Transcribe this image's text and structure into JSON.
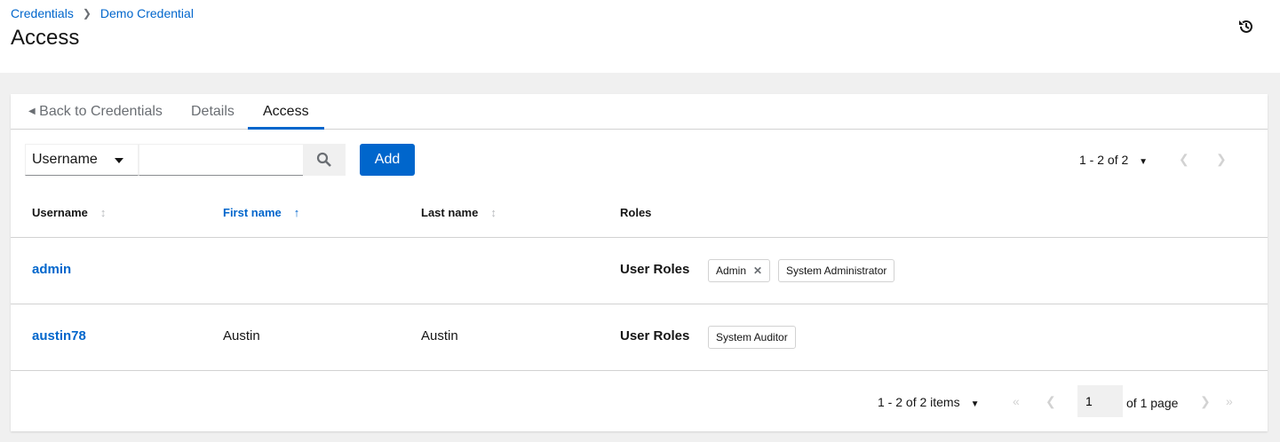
{
  "breadcrumb": {
    "items": [
      "Credentials",
      "Demo Credential"
    ]
  },
  "page_title": "Access",
  "tabs": [
    {
      "label": "Back to Credentials"
    },
    {
      "label": "Details"
    },
    {
      "label": "Access",
      "active": true
    }
  ],
  "toolbar": {
    "filter_field": "Username",
    "search_value": "",
    "add_label": "Add"
  },
  "pagination_top": {
    "label": "1 - 2 of 2"
  },
  "table": {
    "columns": [
      "Username",
      "First name",
      "Last name",
      "Roles"
    ],
    "sorted_column": "First name",
    "rows": [
      {
        "username": "admin",
        "first_name": "",
        "last_name": "",
        "roles_label": "User Roles",
        "roles": [
          "Admin",
          "System Administrator"
        ]
      },
      {
        "username": "austin78",
        "first_name": "Austin",
        "last_name": "Austin",
        "roles_label": "User Roles",
        "roles": [
          "System Auditor"
        ]
      }
    ]
  },
  "pagination_bottom": {
    "items_label": "1 - 2 of 2 items",
    "page": "1",
    "of_pages": "of 1 page"
  },
  "colors": {
    "accent": "#0066cc",
    "background": "#f0f0f0"
  }
}
